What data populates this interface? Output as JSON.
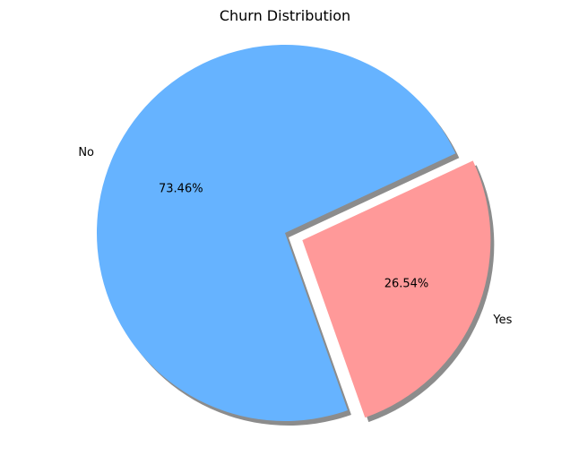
{
  "chart_data": {
    "type": "pie",
    "title": "Churn Distribution",
    "slices": [
      {
        "label": "No",
        "value": 73.46,
        "pct_label": "73.46%",
        "color": "#66b3ff",
        "explode": 0
      },
      {
        "label": "Yes",
        "value": 26.54,
        "pct_label": "26.54%",
        "color": "#ff9999",
        "explode": 0.1
      }
    ],
    "start_angle_deg": 25,
    "direction": "counterclockwise",
    "shadow": true
  }
}
